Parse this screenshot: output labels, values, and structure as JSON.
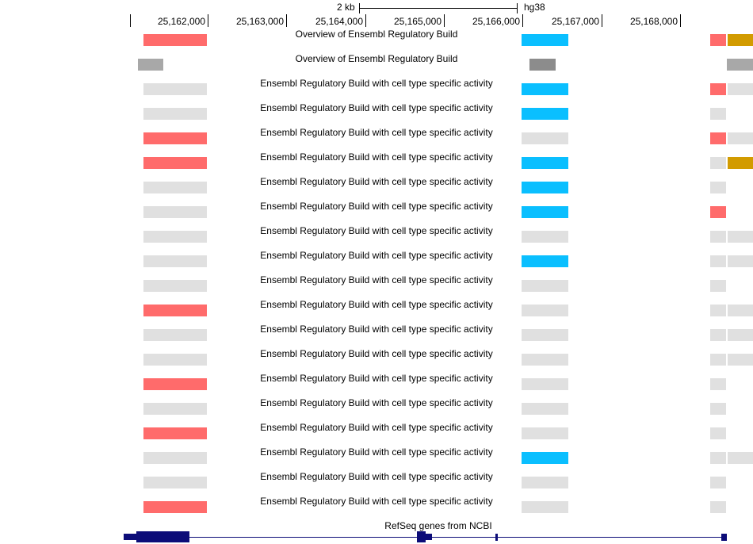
{
  "ruler": {
    "scale_label": "2 kb",
    "assembly": "hg38",
    "ticks": [
      "25,162,000",
      "25,163,000",
      "25,164,000",
      "25,165,000",
      "25,166,000",
      "25,167,000",
      "25,168,000"
    ]
  },
  "colors": {
    "red": "#ff6b6b",
    "blue": "#0abfff",
    "gold": "#d29b00",
    "lightgray": "#e0e0e0",
    "gray": "#a8a8a8",
    "darkgray": "#8c8c8c",
    "gene": "#0c0c78"
  },
  "overview_tracks": [
    {
      "label": "Overview of Ensembl Regulatory Build",
      "left": "red",
      "center": "blue",
      "right1": "red",
      "right2": "gold"
    },
    {
      "label": "Overview of Ensembl Regulatory Build",
      "left": "gray",
      "center": "darkgray",
      "right1": null,
      "right2": "gray"
    }
  ],
  "cell_tracks": [
    {
      "label": "Ensembl Regulatory Build with cell type specific activity",
      "left": "lightgray",
      "center": "blue",
      "right1": "red",
      "right2": "lightgray"
    },
    {
      "label": "Ensembl Regulatory Build with cell type specific activity",
      "left": "lightgray",
      "center": "blue",
      "right1": "lightgray",
      "right2": null
    },
    {
      "label": "Ensembl Regulatory Build with cell type specific activity",
      "left": "red",
      "center": "lightgray",
      "right1": "red",
      "right2": "lightgray"
    },
    {
      "label": "Ensembl Regulatory Build with cell type specific activity",
      "left": "red",
      "center": "blue",
      "right1": "lightgray",
      "right2": "gold"
    },
    {
      "label": "Ensembl Regulatory Build with cell type specific activity",
      "left": "lightgray",
      "center": "blue",
      "right1": "lightgray",
      "right2": null
    },
    {
      "label": "Ensembl Regulatory Build with cell type specific activity",
      "left": "lightgray",
      "center": "blue",
      "right1": "red",
      "right2": null
    },
    {
      "label": "Ensembl Regulatory Build with cell type specific activity",
      "left": "lightgray",
      "center": "lightgray",
      "right1": "lightgray",
      "right2": "lightgray"
    },
    {
      "label": "Ensembl Regulatory Build with cell type specific activity",
      "left": "lightgray",
      "center": "blue",
      "right1": "lightgray",
      "right2": "lightgray"
    },
    {
      "label": "Ensembl Regulatory Build with cell type specific activity",
      "left": "lightgray",
      "center": "lightgray",
      "right1": "lightgray",
      "right2": null
    },
    {
      "label": "Ensembl Regulatory Build with cell type specific activity",
      "left": "red",
      "center": "lightgray",
      "right1": "lightgray",
      "right2": "lightgray"
    },
    {
      "label": "Ensembl Regulatory Build with cell type specific activity",
      "left": "lightgray",
      "center": "lightgray",
      "right1": "lightgray",
      "right2": "lightgray"
    },
    {
      "label": "Ensembl Regulatory Build with cell type specific activity",
      "left": "lightgray",
      "center": "lightgray",
      "right1": "lightgray",
      "right2": "lightgray"
    },
    {
      "label": "Ensembl Regulatory Build with cell type specific activity",
      "left": "red",
      "center": "lightgray",
      "right1": "lightgray",
      "right2": null
    },
    {
      "label": "Ensembl Regulatory Build with cell type specific activity",
      "left": "lightgray",
      "center": "lightgray",
      "right1": "lightgray",
      "right2": null
    },
    {
      "label": "Ensembl Regulatory Build with cell type specific activity",
      "left": "red",
      "center": "lightgray",
      "right1": "lightgray",
      "right2": null
    },
    {
      "label": "Ensembl Regulatory Build with cell type specific activity",
      "left": "lightgray",
      "center": "blue",
      "right1": "lightgray",
      "right2": "lightgray"
    },
    {
      "label": "Ensembl Regulatory Build with cell type specific activity",
      "left": "lightgray",
      "center": "lightgray",
      "right1": "lightgray",
      "right2": null
    },
    {
      "label": "Ensembl Regulatory Build with cell type specific activity",
      "left": "red",
      "center": "lightgray",
      "right1": "lightgray",
      "right2": null
    }
  ],
  "gene_track": {
    "label": "RefSeq genes from NCBI"
  }
}
